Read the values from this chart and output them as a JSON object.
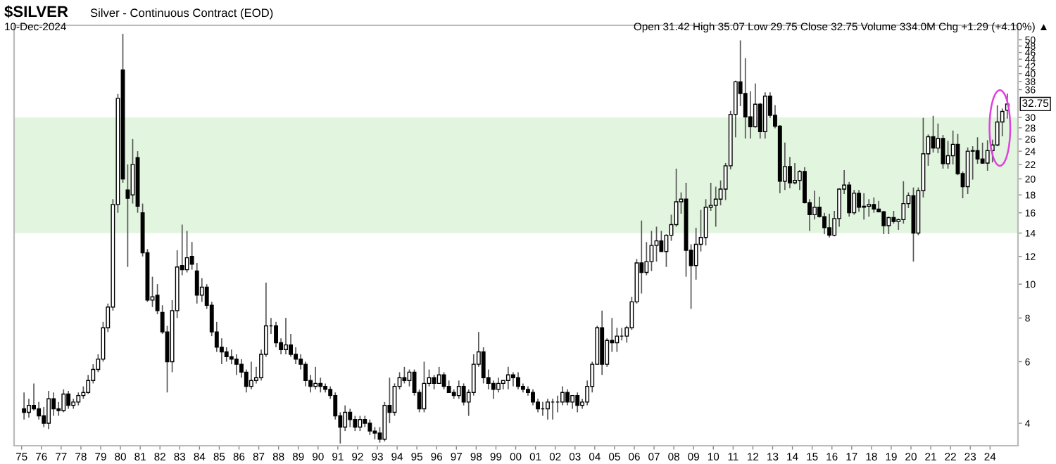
{
  "chart_data": {
    "type": "candlestick",
    "title": "$SILVER",
    "subtitle": "Silver - Continuous Contract (EOD)",
    "annotations": [
      "10-Dec-2024",
      "Open 31.42 High 35.07 Low 29.75 Close 32.75 Volume 334.0M Chg +1.29 (+4.10%) ▲",
      {
        "text": "32.75",
        "y": 32.75
      }
    ],
    "log": "y",
    "grid": false,
    "xlim": [
      "1974-08-15",
      "2025-06-01"
    ],
    "xticks": [
      {
        "value": "1975-01-01",
        "label": "75"
      },
      {
        "value": "1976-01-01",
        "label": "76"
      },
      {
        "value": "1977-01-01",
        "label": "77"
      },
      {
        "value": "1978-01-01",
        "label": "78"
      },
      {
        "value": "1979-01-01",
        "label": "79"
      },
      {
        "value": "1980-01-01",
        "label": "80"
      },
      {
        "value": "1981-01-01",
        "label": "81"
      },
      {
        "value": "1982-01-01",
        "label": "82"
      },
      {
        "value": "1983-01-01",
        "label": "83"
      },
      {
        "value": "1984-01-01",
        "label": "84"
      },
      {
        "value": "1985-01-01",
        "label": "85"
      },
      {
        "value": "1986-01-01",
        "label": "86"
      },
      {
        "value": "1987-01-01",
        "label": "87"
      },
      {
        "value": "1988-01-01",
        "label": "88"
      },
      {
        "value": "1989-01-01",
        "label": "89"
      },
      {
        "value": "1990-01-01",
        "label": "90"
      },
      {
        "value": "1991-01-01",
        "label": "91"
      },
      {
        "value": "1992-01-01",
        "label": "92"
      },
      {
        "value": "1993-01-01",
        "label": "93"
      },
      {
        "value": "1994-01-01",
        "label": "94"
      },
      {
        "value": "1995-01-01",
        "label": "95"
      },
      {
        "value": "1996-01-01",
        "label": "96"
      },
      {
        "value": "1997-01-01",
        "label": "97"
      },
      {
        "value": "1998-01-01",
        "label": "98"
      },
      {
        "value": "1999-01-01",
        "label": "99"
      },
      {
        "value": "2000-01-01",
        "label": "00"
      },
      {
        "value": "2001-01-01",
        "label": "01"
      },
      {
        "value": "2002-01-01",
        "label": "02"
      },
      {
        "value": "2003-01-01",
        "label": "03"
      },
      {
        "value": "2004-01-01",
        "label": "04"
      },
      {
        "value": "2005-01-01",
        "label": "05"
      },
      {
        "value": "2006-01-01",
        "label": "06"
      },
      {
        "value": "2007-01-01",
        "label": "07"
      },
      {
        "value": "2008-01-01",
        "label": "08"
      },
      {
        "value": "2009-01-01",
        "label": "09"
      },
      {
        "value": "2010-01-01",
        "label": "10"
      },
      {
        "value": "2011-01-01",
        "label": "11"
      },
      {
        "value": "2012-01-01",
        "label": "12"
      },
      {
        "value": "2013-01-01",
        "label": "13"
      },
      {
        "value": "2014-01-01",
        "label": "14"
      },
      {
        "value": "2015-01-01",
        "label": "15"
      },
      {
        "value": "2016-01-01",
        "label": "16"
      },
      {
        "value": "2017-01-01",
        "label": "17"
      },
      {
        "value": "2018-01-01",
        "label": "18"
      },
      {
        "value": "2019-01-01",
        "label": "19"
      },
      {
        "value": "2020-01-01",
        "label": "20"
      },
      {
        "value": "2021-01-01",
        "label": "21"
      },
      {
        "value": "2022-01-01",
        "label": "22"
      },
      {
        "value": "2023-01-01",
        "label": "23"
      },
      {
        "value": "2024-01-01",
        "label": "24"
      }
    ],
    "ylim": [
      3.45,
      55
    ],
    "yticks": [
      4,
      6,
      8,
      10,
      12,
      14,
      16,
      18,
      20,
      22,
      24,
      26,
      28,
      30,
      36,
      38,
      40,
      42,
      44,
      46,
      48,
      50
    ],
    "bands": [
      {
        "axis": "y",
        "from": 14,
        "to": 30,
        "color": "#e2f5df"
      }
    ],
    "x": [
      "1975-02-15",
      "1975-05-15",
      "1975-08-15",
      "1975-11-15",
      "1976-02-15",
      "1976-05-15",
      "1976-08-15",
      "1976-11-15",
      "1977-02-15",
      "1977-05-15",
      "1977-08-15",
      "1977-11-15",
      "1978-02-15",
      "1978-05-15",
      "1978-08-15",
      "1978-11-15",
      "1979-02-15",
      "1979-05-15",
      "1979-08-15",
      "1979-11-15",
      "1980-02-15",
      "1980-05-15",
      "1980-08-15",
      "1980-11-15",
      "1981-02-15",
      "1981-05-15",
      "1981-08-15",
      "1981-11-15",
      "1982-02-15",
      "1982-05-15",
      "1982-08-15",
      "1982-11-15",
      "1983-02-15",
      "1983-05-15",
      "1983-08-15",
      "1983-11-15",
      "1984-02-15",
      "1984-05-15",
      "1984-08-15",
      "1984-11-15",
      "1985-02-15",
      "1985-05-15",
      "1985-08-15",
      "1985-11-15",
      "1986-02-15",
      "1986-05-15",
      "1986-08-15",
      "1986-11-15",
      "1987-02-15",
      "1987-05-15",
      "1987-08-15",
      "1987-11-15",
      "1988-02-15",
      "1988-05-15",
      "1988-08-15",
      "1988-11-15",
      "1989-02-15",
      "1989-05-15",
      "1989-08-15",
      "1989-11-15",
      "1990-02-15",
      "1990-05-15",
      "1990-08-15",
      "1990-11-15",
      "1991-02-15",
      "1991-05-15",
      "1991-08-15",
      "1991-11-15",
      "1992-02-15",
      "1992-05-15",
      "1992-08-15",
      "1992-11-15",
      "1993-02-15",
      "1993-05-15",
      "1993-08-15",
      "1993-11-15",
      "1994-02-15",
      "1994-05-15",
      "1994-08-15",
      "1994-11-15",
      "1995-02-15",
      "1995-05-15",
      "1995-08-15",
      "1995-11-15",
      "1996-02-15",
      "1996-05-15",
      "1996-08-15",
      "1996-11-15",
      "1997-02-15",
      "1997-05-15",
      "1997-08-15",
      "1997-11-15",
      "1998-02-15",
      "1998-05-15",
      "1998-08-15",
      "1998-11-15",
      "1999-02-15",
      "1999-05-15",
      "1999-08-15",
      "1999-11-15",
      "2000-02-15",
      "2000-05-15",
      "2000-08-15",
      "2000-11-15",
      "2001-02-15",
      "2001-05-15",
      "2001-08-15",
      "2001-11-15",
      "2002-02-15",
      "2002-05-15",
      "2002-08-15",
      "2002-11-15",
      "2003-02-15",
      "2003-05-15",
      "2003-08-15",
      "2003-11-15",
      "2004-02-15",
      "2004-05-15",
      "2004-08-15",
      "2004-11-15",
      "2005-02-15",
      "2005-05-15",
      "2005-08-15",
      "2005-11-15",
      "2006-02-15",
      "2006-05-15",
      "2006-08-15",
      "2006-11-15",
      "2007-02-15",
      "2007-05-15",
      "2007-08-15",
      "2007-11-15",
      "2008-02-15",
      "2008-05-15",
      "2008-08-15",
      "2008-11-15",
      "2009-02-15",
      "2009-05-15",
      "2009-08-15",
      "2009-11-15",
      "2010-02-15",
      "2010-05-15",
      "2010-08-15",
      "2010-11-15",
      "2011-02-15",
      "2011-05-15",
      "2011-08-15",
      "2011-11-15",
      "2012-02-15",
      "2012-05-15",
      "2012-08-15",
      "2012-11-15",
      "2013-02-15",
      "2013-05-15",
      "2013-08-15",
      "2013-11-15",
      "2014-02-15",
      "2014-05-15",
      "2014-08-15",
      "2014-11-15",
      "2015-02-15",
      "2015-05-15",
      "2015-08-15",
      "2015-11-15",
      "2016-02-15",
      "2016-05-15",
      "2016-08-15",
      "2016-11-15",
      "2017-02-15",
      "2017-05-15",
      "2017-08-15",
      "2017-11-15",
      "2018-02-15",
      "2018-05-15",
      "2018-08-15",
      "2018-11-15",
      "2019-02-15",
      "2019-05-15",
      "2019-08-15",
      "2019-11-15",
      "2020-02-15",
      "2020-05-15",
      "2020-08-15",
      "2020-11-15",
      "2021-02-15",
      "2021-05-15",
      "2021-08-15",
      "2021-11-15",
      "2022-02-15",
      "2022-05-15",
      "2022-08-15",
      "2022-11-15",
      "2023-02-15",
      "2023-05-15",
      "2023-08-15",
      "2023-11-15",
      "2024-02-15",
      "2024-05-15",
      "2024-08-15",
      "2024-11-15"
    ],
    "ohlc": [
      [
        4.4,
        4.9,
        4.1,
        4.3
      ],
      [
        4.3,
        4.7,
        4.15,
        4.5
      ],
      [
        4.5,
        5.2,
        4.35,
        4.4
      ],
      [
        4.4,
        4.6,
        4.1,
        4.2
      ],
      [
        4.2,
        4.45,
        3.9,
        4.0
      ],
      [
        4.0,
        4.95,
        3.85,
        4.7
      ],
      [
        4.7,
        4.9,
        4.2,
        4.4
      ],
      [
        4.4,
        4.6,
        4.2,
        4.35
      ],
      [
        4.35,
        5.0,
        4.3,
        4.85
      ],
      [
        4.85,
        4.95,
        4.4,
        4.5
      ],
      [
        4.5,
        4.7,
        4.4,
        4.6
      ],
      [
        4.6,
        4.9,
        4.5,
        4.8
      ],
      [
        4.8,
        5.1,
        4.7,
        4.9
      ],
      [
        4.9,
        5.5,
        4.85,
        5.3
      ],
      [
        5.3,
        5.9,
        5.2,
        5.7
      ],
      [
        5.7,
        6.3,
        5.6,
        6.1
      ],
      [
        6.1,
        7.8,
        6.0,
        7.5
      ],
      [
        7.5,
        8.8,
        7.3,
        8.6
      ],
      [
        8.6,
        17.5,
        8.4,
        16.9
      ],
      [
        16.9,
        35.0,
        16.0,
        34.0
      ],
      [
        41.0,
        52.0,
        19.5,
        20.0
      ],
      [
        18.6,
        22.0,
        11.2,
        17.6
      ],
      [
        18.0,
        26.0,
        17.0,
        22.0
      ],
      [
        23.0,
        24.0,
        16.0,
        16.7
      ],
      [
        16.0,
        17.0,
        12.0,
        12.3
      ],
      [
        12.3,
        12.6,
        8.9,
        9.0
      ],
      [
        9.0,
        10.5,
        8.6,
        9.2
      ],
      [
        9.3,
        10.0,
        8.2,
        8.4
      ],
      [
        8.3,
        8.7,
        7.2,
        7.3
      ],
      [
        7.3,
        7.6,
        4.9,
        6.0
      ],
      [
        6.0,
        9.0,
        5.6,
        8.4
      ],
      [
        8.4,
        12.5,
        8.0,
        11.2
      ],
      [
        11.3,
        14.8,
        10.6,
        11.0
      ],
      [
        11.0,
        14.2,
        10.8,
        11.9
      ],
      [
        12.0,
        13.2,
        11.0,
        11.4
      ],
      [
        10.9,
        11.5,
        8.8,
        9.3
      ],
      [
        9.3,
        10.4,
        8.9,
        9.8
      ],
      [
        9.8,
        10.0,
        8.5,
        8.7
      ],
      [
        8.7,
        8.9,
        7.1,
        7.3
      ],
      [
        7.3,
        7.8,
        6.4,
        6.6
      ],
      [
        6.6,
        7.0,
        5.9,
        6.4
      ],
      [
        6.4,
        6.6,
        6.0,
        6.2
      ],
      [
        6.2,
        6.5,
        5.9,
        6.1
      ],
      [
        6.1,
        6.3,
        5.5,
        5.9
      ],
      [
        5.9,
        6.1,
        5.4,
        5.6
      ],
      [
        5.6,
        5.7,
        4.9,
        5.1
      ],
      [
        5.1,
        6.0,
        5.0,
        5.3
      ],
      [
        5.3,
        5.8,
        5.2,
        5.4
      ],
      [
        5.4,
        6.5,
        5.3,
        6.3
      ],
      [
        6.3,
        10.1,
        6.2,
        7.6
      ],
      [
        7.6,
        8.0,
        7.2,
        7.6
      ],
      [
        7.6,
        7.8,
        6.6,
        6.8
      ],
      [
        6.8,
        7.0,
        6.3,
        6.5
      ],
      [
        6.5,
        8.0,
        6.3,
        6.7
      ],
      [
        6.7,
        7.2,
        6.2,
        6.3
      ],
      [
        6.3,
        6.6,
        5.9,
        6.1
      ],
      [
        6.1,
        6.3,
        5.7,
        5.9
      ],
      [
        5.9,
        6.0,
        5.1,
        5.3
      ],
      [
        5.3,
        5.5,
        4.9,
        5.1
      ],
      [
        5.1,
        5.8,
        5.0,
        5.2
      ],
      [
        5.2,
        5.4,
        4.9,
        5.1
      ],
      [
        5.1,
        5.2,
        4.9,
        5.0
      ],
      [
        5.0,
        5.1,
        4.7,
        4.8
      ],
      [
        4.8,
        4.9,
        4.1,
        4.2
      ],
      [
        4.2,
        4.3,
        3.5,
        3.9
      ],
      [
        3.9,
        4.5,
        3.8,
        4.3
      ],
      [
        4.3,
        4.4,
        3.9,
        4.1
      ],
      [
        4.1,
        4.2,
        3.8,
        3.9
      ],
      [
        3.9,
        4.2,
        3.8,
        4.1
      ],
      [
        4.1,
        4.2,
        3.9,
        4.0
      ],
      [
        4.0,
        4.1,
        3.7,
        3.8
      ],
      [
        3.8,
        3.9,
        3.6,
        3.75
      ],
      [
        3.75,
        3.9,
        3.52,
        3.6
      ],
      [
        3.6,
        4.6,
        3.55,
        4.5
      ],
      [
        4.5,
        5.4,
        4.0,
        4.3
      ],
      [
        4.3,
        5.2,
        4.2,
        5.1
      ],
      [
        5.1,
        5.6,
        5.0,
        5.4
      ],
      [
        5.4,
        5.8,
        5.2,
        5.3
      ],
      [
        5.3,
        5.7,
        5.1,
        5.6
      ],
      [
        5.6,
        5.7,
        4.8,
        4.9
      ],
      [
        4.9,
        5.0,
        4.3,
        4.4
      ],
      [
        4.4,
        6.0,
        4.3,
        5.2
      ],
      [
        5.2,
        5.7,
        5.1,
        5.4
      ],
      [
        5.4,
        5.5,
        5.0,
        5.2
      ],
      [
        5.2,
        5.8,
        5.2,
        5.5
      ],
      [
        5.5,
        5.6,
        5.0,
        5.1
      ],
      [
        5.1,
        5.3,
        4.9,
        4.9
      ],
      [
        4.9,
        5.0,
        4.7,
        4.8
      ],
      [
        4.8,
        5.3,
        4.7,
        5.1
      ],
      [
        5.1,
        5.2,
        4.5,
        4.6
      ],
      [
        4.6,
        5.0,
        4.2,
        4.9
      ],
      [
        4.9,
        6.3,
        4.8,
        5.9
      ],
      [
        5.9,
        7.3,
        5.8,
        6.4
      ],
      [
        6.4,
        6.6,
        5.2,
        5.4
      ],
      [
        5.4,
        5.7,
        5.0,
        5.2
      ],
      [
        5.2,
        5.3,
        4.7,
        5.0
      ],
      [
        5.0,
        5.4,
        4.9,
        5.2
      ],
      [
        5.2,
        5.3,
        5.0,
        5.3
      ],
      [
        5.3,
        5.8,
        5.0,
        5.5
      ],
      [
        5.5,
        5.6,
        5.1,
        5.4
      ],
      [
        5.4,
        5.6,
        5.0,
        5.1
      ],
      [
        5.1,
        5.2,
        4.9,
        5.0
      ],
      [
        5.0,
        5.1,
        4.8,
        4.9
      ],
      [
        4.9,
        5.0,
        4.5,
        4.6
      ],
      [
        4.6,
        4.7,
        4.3,
        4.4
      ],
      [
        4.4,
        4.6,
        4.2,
        4.4
      ],
      [
        4.4,
        4.7,
        4.1,
        4.6
      ],
      [
        4.6,
        4.7,
        4.1,
        4.6
      ],
      [
        4.6,
        4.8,
        4.3,
        4.6
      ],
      [
        4.6,
        5.1,
        4.5,
        4.9
      ],
      [
        4.9,
        5.0,
        4.5,
        4.6
      ],
      [
        4.6,
        4.8,
        4.4,
        4.8
      ],
      [
        4.8,
        4.9,
        4.3,
        4.5
      ],
      [
        4.5,
        4.7,
        4.4,
        4.6
      ],
      [
        4.6,
        5.3,
        4.5,
        5.1
      ],
      [
        5.1,
        6.0,
        4.9,
        5.9
      ],
      [
        5.9,
        7.6,
        5.9,
        7.5
      ],
      [
        7.5,
        8.4,
        5.5,
        5.9
      ],
      [
        5.9,
        7.0,
        5.8,
        6.9
      ],
      [
        6.9,
        8.0,
        6.4,
        6.8
      ],
      [
        6.8,
        7.5,
        6.4,
        7.1
      ],
      [
        7.1,
        7.5,
        6.9,
        7.1
      ],
      [
        7.1,
        7.6,
        6.8,
        7.5
      ],
      [
        7.5,
        9.2,
        7.4,
        8.9
      ],
      [
        8.9,
        11.8,
        8.8,
        11.5
      ],
      [
        11.5,
        15.2,
        9.4,
        10.8
      ],
      [
        10.8,
        13.2,
        10.6,
        11.6
      ],
      [
        11.6,
        14.2,
        10.9,
        12.9
      ],
      [
        12.9,
        14.6,
        11.6,
        13.3
      ],
      [
        13.3,
        14.2,
        12.4,
        12.4
      ],
      [
        12.4,
        13.9,
        11.2,
        13.8
      ],
      [
        13.8,
        15.8,
        13.3,
        14.8
      ],
      [
        14.8,
        21.4,
        14.6,
        17.2
      ],
      [
        17.2,
        18.3,
        15.9,
        17.5
      ],
      [
        17.5,
        19.5,
        10.5,
        12.5
      ],
      [
        12.5,
        13.0,
        8.5,
        11.3
      ],
      [
        11.3,
        14.5,
        10.3,
        13.0
      ],
      [
        13.0,
        16.3,
        12.4,
        13.6
      ],
      [
        13.6,
        17.5,
        12.9,
        16.6
      ],
      [
        16.6,
        19.5,
        16.2,
        16.8
      ],
      [
        16.8,
        19.0,
        14.6,
        17.5
      ],
      [
        17.5,
        19.8,
        16.8,
        18.7
      ],
      [
        18.7,
        22.2,
        17.4,
        21.8
      ],
      [
        21.8,
        31.3,
        21.3,
        30.6
      ],
      [
        30.6,
        38.2,
        26.3,
        37.9
      ],
      [
        37.9,
        49.8,
        32.3,
        35.1
      ],
      [
        35.1,
        44.3,
        26.1,
        30.1
      ],
      [
        30.1,
        35.6,
        26.1,
        28.2
      ],
      [
        28.2,
        37.5,
        28.0,
        32.7
      ],
      [
        32.7,
        33.0,
        26.1,
        27.3
      ],
      [
        27.3,
        35.4,
        26.1,
        34.5
      ],
      [
        34.5,
        35.4,
        29.9,
        30.4
      ],
      [
        30.4,
        32.5,
        27.9,
        28.3
      ],
      [
        28.3,
        28.5,
        18.2,
        19.7
      ],
      [
        19.7,
        25.4,
        18.6,
        21.7
      ],
      [
        21.7,
        23.1,
        18.8,
        19.5
      ],
      [
        19.5,
        22.2,
        19.3,
        19.8
      ],
      [
        19.8,
        21.2,
        18.6,
        21.0
      ],
      [
        21.0,
        21.6,
        17.0,
        17.1
      ],
      [
        17.1,
        17.5,
        14.2,
        15.8
      ],
      [
        15.8,
        18.5,
        15.3,
        16.6
      ],
      [
        16.6,
        17.8,
        15.5,
        15.6
      ],
      [
        15.6,
        16.0,
        13.9,
        14.5
      ],
      [
        14.5,
        15.9,
        13.6,
        13.8
      ],
      [
        13.8,
        16.2,
        13.7,
        15.4
      ],
      [
        15.4,
        18.8,
        14.6,
        18.7
      ],
      [
        18.7,
        21.2,
        18.1,
        19.2
      ],
      [
        19.2,
        19.6,
        15.6,
        16.0
      ],
      [
        16.0,
        18.6,
        15.8,
        18.2
      ],
      [
        18.2,
        18.6,
        16.1,
        16.6
      ],
      [
        16.6,
        18.2,
        15.3,
        16.7
      ],
      [
        16.7,
        17.5,
        15.6,
        16.9
      ],
      [
        16.9,
        17.7,
        16.0,
        16.4
      ],
      [
        16.4,
        17.3,
        16.1,
        16.1
      ],
      [
        16.1,
        16.2,
        13.9,
        14.7
      ],
      [
        14.7,
        15.6,
        13.9,
        15.5
      ],
      [
        15.5,
        16.2,
        14.9,
        15.1
      ],
      [
        15.1,
        15.4,
        14.3,
        15.3
      ],
      [
        15.3,
        19.7,
        14.9,
        17.0
      ],
      [
        17.0,
        18.3,
        16.5,
        17.9
      ],
      [
        17.9,
        18.9,
        11.6,
        14.0
      ],
      [
        14.0,
        18.9,
        13.8,
        18.5
      ],
      [
        18.5,
        29.9,
        17.7,
        23.6
      ],
      [
        23.6,
        26.8,
        21.8,
        26.4
      ],
      [
        26.4,
        30.3,
        23.8,
        24.5
      ],
      [
        24.5,
        28.8,
        23.7,
        26.1
      ],
      [
        26.1,
        26.7,
        21.4,
        22.1
      ],
      [
        22.1,
        25.7,
        21.4,
        23.3
      ],
      [
        23.3,
        27.5,
        22.0,
        25.1
      ],
      [
        25.1,
        26.9,
        20.5,
        20.7
      ],
      [
        20.7,
        21.0,
        17.6,
        19.0
      ],
      [
        19.0,
        24.6,
        18.1,
        24.0
      ],
      [
        24.0,
        24.8,
        19.9,
        24.1
      ],
      [
        24.1,
        26.3,
        22.1,
        22.8
      ],
      [
        22.8,
        25.4,
        22.1,
        22.2
      ],
      [
        22.2,
        25.8,
        21.1,
        24.1
      ],
      [
        24.1,
        25.9,
        22.3,
        25.0
      ],
      [
        25.0,
        32.5,
        24.8,
        29.1
      ],
      [
        29.1,
        31.8,
        26.5,
        31.2
      ],
      [
        31.42,
        35.07,
        29.75,
        32.75
      ]
    ]
  }
}
